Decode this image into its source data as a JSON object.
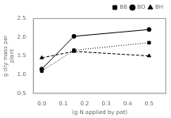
{
  "chart_data": {
    "type": "line",
    "x": [
      0.0,
      0.15,
      0.5
    ],
    "series": [
      {
        "name": "BB",
        "color": "#000000",
        "marker": "square",
        "line_style": "dotted",
        "values": [
          1.1,
          1.65,
          1.85
        ]
      },
      {
        "name": "BO",
        "color": "#000000",
        "marker": "circle",
        "line_style": "solid",
        "values": [
          1.15,
          2.02,
          2.2
        ]
      },
      {
        "name": "BH",
        "color": "#000000",
        "marker": "triangle",
        "line_style": "dashed",
        "values": [
          1.45,
          1.62,
          1.5
        ]
      }
    ],
    "xlabel": "(g N applied by pot)",
    "ylabel": "g dry mass per\nplant",
    "xlim": [
      -0.04,
      0.58
    ],
    "ylim": [
      0.5,
      2.5
    ],
    "xticks": [
      {
        "value": 0.0,
        "label": "0.0"
      },
      0.1,
      0.2,
      0.3,
      0.4,
      0.5
    ],
    "yticks": [
      0.5,
      {
        "value": 1.0,
        "label": "1.0"
      },
      1.5,
      {
        "value": 2.0,
        "label": "2.0"
      },
      2.5
    ],
    "grid": false,
    "legend": "upper right"
  }
}
